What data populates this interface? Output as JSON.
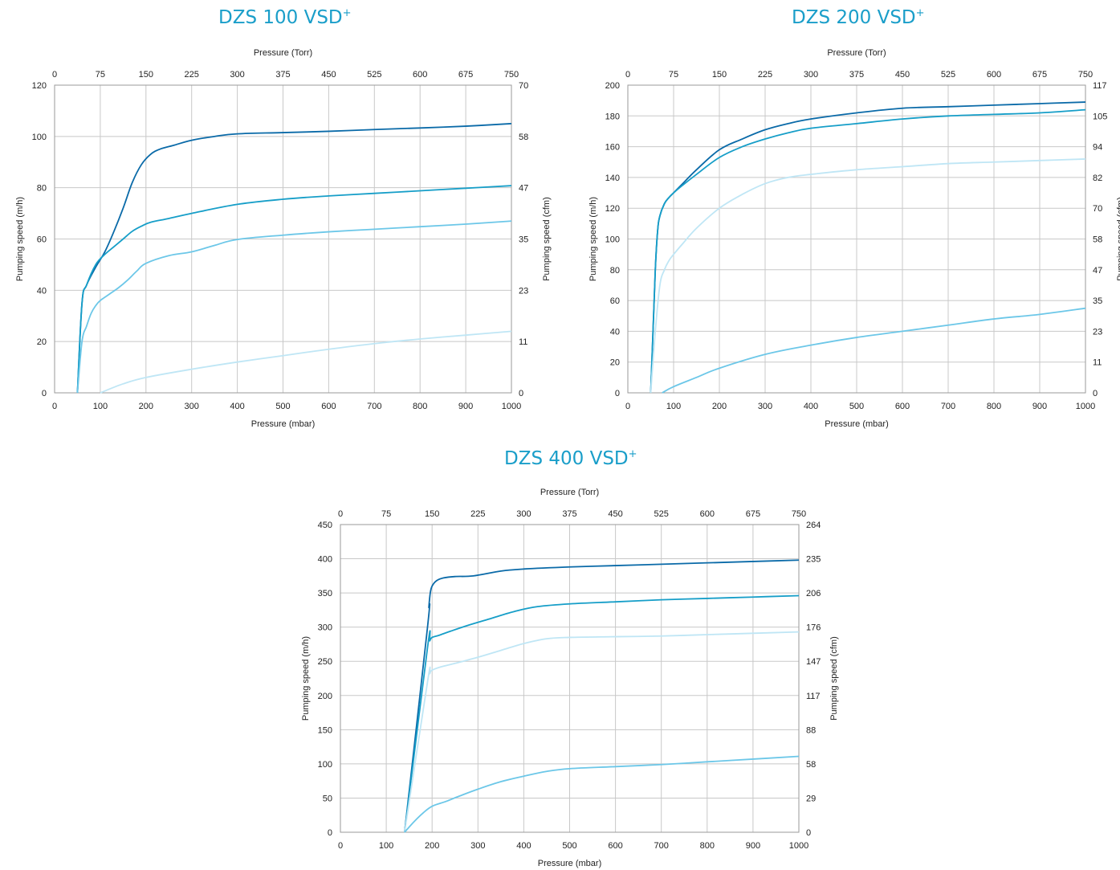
{
  "chart_data": [
    {
      "type": "line",
      "title": "DZS 100 VSD",
      "title_sup": "+",
      "xlabel": "Pressure (mbar)",
      "x2label": "Pressure (Torr)",
      "ylabel": "Pumping speed (m/h)",
      "y2label": "Pumping speed (cfm)",
      "xlim": [
        0,
        1000
      ],
      "ylim": [
        0,
        120
      ],
      "xticks": [
        "0",
        "100",
        "200",
        "300",
        "400",
        "500",
        "600",
        "700",
        "800",
        "900",
        "1000"
      ],
      "x2ticks": [
        "0",
        "75",
        "150",
        "225",
        "300",
        "375",
        "450",
        "525",
        "600",
        "675",
        "750"
      ],
      "yticks": [
        "0",
        "20",
        "40",
        "60",
        "80",
        "100",
        "120"
      ],
      "y2ticks": [
        "0",
        "11",
        "23",
        "35",
        "47",
        "58",
        "70"
      ],
      "grid": true,
      "colors": [
        "#0a6aa8",
        "#169ec8",
        "#6cc7e8",
        "#bfe6f5"
      ],
      "series": [
        {
          "x": [
            50,
            60,
            70,
            90,
            110,
            130,
            150,
            170,
            190,
            210,
            230,
            260,
            300,
            350,
            400,
            500,
            600,
            700,
            800,
            900,
            1000
          ],
          "y": [
            0,
            35,
            42,
            49,
            55,
            63,
            72,
            82,
            89,
            93,
            95,
            96.5,
            98.5,
            100,
            101,
            101.5,
            102,
            102.7,
            103.3,
            104,
            105
          ]
        },
        {
          "x": [
            50,
            60,
            70,
            90,
            110,
            130,
            150,
            170,
            190,
            210,
            250,
            300,
            400,
            500,
            600,
            700,
            800,
            900,
            1000
          ],
          "y": [
            0,
            35,
            42,
            50,
            54,
            57,
            60,
            63,
            65,
            66.5,
            68,
            70,
            73.5,
            75.5,
            76.8,
            77.8,
            78.8,
            79.8,
            80.8
          ]
        },
        {
          "x": [
            50,
            60,
            70,
            80,
            90,
            100,
            120,
            140,
            160,
            180,
            200,
            250,
            300,
            350,
            400,
            500,
            600,
            700,
            800,
            900,
            1000
          ],
          "y": [
            0,
            20,
            26,
            31,
            34,
            36,
            38.5,
            41,
            44,
            47.5,
            50.5,
            53.5,
            55,
            57.5,
            59.8,
            61.5,
            62.8,
            63.8,
            64.8,
            65.8,
            67
          ]
        },
        {
          "x": [
            100,
            150,
            200,
            300,
            400,
            500,
            600,
            700,
            800,
            900,
            1000
          ],
          "y": [
            0,
            3.5,
            6,
            9.2,
            12,
            14.5,
            17,
            19.2,
            21,
            22.5,
            24
          ]
        }
      ]
    },
    {
      "type": "line",
      "title": "DZS 200 VSD",
      "title_sup": "+",
      "xlabel": "Pressure (mbar)",
      "x2label": "Pressure (Torr)",
      "ylabel": "Pumping speed (m/h)",
      "y2label": "Pumping speed (cfm)",
      "xlim": [
        0,
        1000
      ],
      "ylim": [
        0,
        200
      ],
      "xticks": [
        "0",
        "100",
        "200",
        "300",
        "400",
        "500",
        "600",
        "700",
        "800",
        "900",
        "1000"
      ],
      "x2ticks": [
        "0",
        "75",
        "150",
        "225",
        "300",
        "375",
        "450",
        "525",
        "600",
        "675",
        "750"
      ],
      "yticks": [
        "0",
        "20",
        "40",
        "60",
        "80",
        "100",
        "120",
        "140",
        "160",
        "180",
        "200"
      ],
      "y2ticks": [
        "0",
        "11",
        "23",
        "35",
        "47",
        "58",
        "70",
        "82",
        "94",
        "105",
        "117"
      ],
      "grid": true,
      "colors": [
        "#0a6aa8",
        "#169ec8",
        "#bfe6f5",
        "#6cc7e8"
      ],
      "series": [
        {
          "x": [
            50,
            55,
            60,
            65,
            70,
            80,
            90,
            100,
            120,
            150,
            200,
            250,
            300,
            350,
            400,
            500,
            600,
            700,
            800,
            900,
            1000
          ],
          "y": [
            0,
            40,
            80,
            105,
            115,
            123,
            127,
            130,
            136,
            145,
            158,
            165,
            171,
            175,
            178,
            182,
            185,
            186,
            187,
            188,
            189
          ]
        },
        {
          "x": [
            50,
            55,
            60,
            65,
            70,
            80,
            90,
            100,
            120,
            150,
            200,
            250,
            300,
            350,
            400,
            500,
            600,
            700,
            800,
            900,
            1000
          ],
          "y": [
            0,
            40,
            80,
            105,
            115,
            123,
            127,
            130,
            135,
            142,
            153,
            160,
            165,
            169,
            172,
            175,
            178,
            180,
            181,
            182,
            184
          ]
        },
        {
          "x": [
            50,
            60,
            70,
            80,
            90,
            100,
            120,
            150,
            200,
            250,
            300,
            350,
            400,
            500,
            600,
            700,
            800,
            900,
            1000
          ],
          "y": [
            0,
            40,
            70,
            80,
            86,
            90,
            97,
            107,
            120,
            129,
            136,
            140,
            142,
            145,
            147,
            149,
            150,
            151,
            152
          ]
        },
        {
          "x": [
            75,
            100,
            150,
            200,
            300,
            400,
            500,
            600,
            700,
            800,
            900,
            1000
          ],
          "y": [
            0,
            4,
            10,
            16,
            25,
            31,
            36,
            40,
            44,
            48,
            51,
            55
          ]
        }
      ]
    },
    {
      "type": "line",
      "title": "DZS 400 VSD",
      "title_sup": "+",
      "xlabel": "Pressure (mbar)",
      "x2label": "Pressure (Torr)",
      "ylabel": "Pumping speed (m/h)",
      "y2label": "Pumping speed (cfm)",
      "xlim": [
        0,
        1000
      ],
      "ylim": [
        0,
        450
      ],
      "xticks": [
        "0",
        "100",
        "200",
        "300",
        "400",
        "500",
        "600",
        "700",
        "800",
        "900",
        "1000"
      ],
      "x2ticks": [
        "0",
        "75",
        "150",
        "225",
        "300",
        "375",
        "450",
        "525",
        "600",
        "675",
        "750"
      ],
      "yticks": [
        "0",
        "50",
        "100",
        "150",
        "200",
        "250",
        "300",
        "350",
        "400",
        "450"
      ],
      "y2ticks": [
        "0",
        "29",
        "58",
        "88",
        "117",
        "147",
        "176",
        "206",
        "235",
        "264"
      ],
      "grid": true,
      "colors": [
        "#0a6aa8",
        "#169ec8",
        "#bfe6f5",
        "#6cc7e8"
      ],
      "series": [
        {
          "x": [
            140,
            190,
            193,
            196,
            200,
            210,
            225,
            250,
            290,
            350,
            400,
            500,
            600,
            700,
            800,
            900,
            1000
          ],
          "y": [
            0,
            300,
            330,
            350,
            360,
            368,
            372,
            374,
            375,
            382,
            385,
            388,
            390,
            392,
            394,
            396,
            398
          ]
        },
        {
          "x": [
            140,
            190,
            195,
            200,
            215,
            240,
            280,
            330,
            380,
            430,
            500,
            600,
            700,
            800,
            900,
            1000
          ],
          "y": [
            0,
            270,
            280,
            285,
            288,
            294,
            303,
            313,
            323,
            330,
            334,
            337,
            340,
            342,
            344,
            346
          ]
        },
        {
          "x": [
            140,
            190,
            195,
            200,
            220,
            250,
            300,
            350,
            400,
            450,
            500,
            600,
            700,
            800,
            900,
            1000
          ],
          "y": [
            0,
            220,
            232,
            237,
            242,
            247,
            256,
            266,
            276,
            283,
            285,
            286,
            287,
            289,
            291,
            293
          ]
        },
        {
          "x": [
            140,
            160,
            180,
            200,
            230,
            260,
            300,
            350,
            400,
            450,
            500,
            600,
            700,
            800,
            900,
            1000
          ],
          "y": [
            0,
            15,
            28,
            38,
            45,
            53,
            63,
            74,
            82,
            89,
            93,
            96,
            99,
            103,
            107,
            111
          ]
        }
      ]
    }
  ]
}
